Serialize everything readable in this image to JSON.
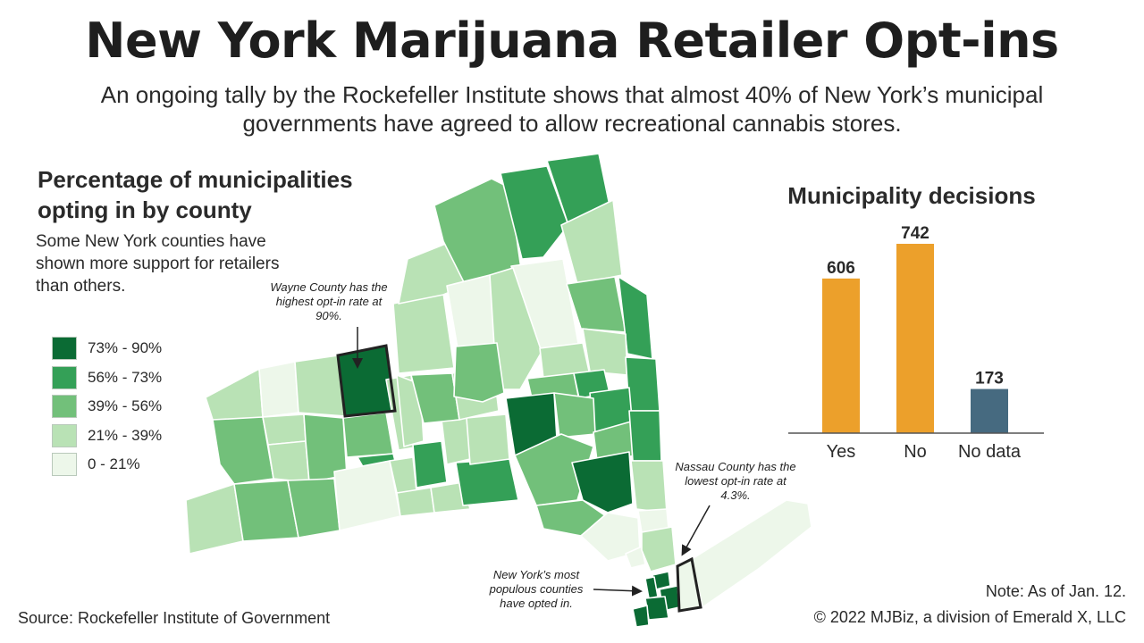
{
  "header": {
    "title": "New York Marijuana Retailer Opt-ins",
    "subtitle": "An ongoing tally by the Rockefeller Institute shows that almost 40% of New York’s municipal governments have agreed to allow recreational cannabis stores."
  },
  "map": {
    "title": "Percentage of municipalities opting in by county",
    "description": "Some New York counties have shown more support for retailers than others.",
    "legend": [
      {
        "label": "73% - 90%",
        "color": "#0b6b34"
      },
      {
        "label": "56% - 73%",
        "color": "#34a057"
      },
      {
        "label": "39% - 56%",
        "color": "#72c07a"
      },
      {
        "label": "21% - 39%",
        "color": "#b9e2b5"
      },
      {
        "label": "0 - 21%",
        "color": "#edf7ea"
      }
    ],
    "annotations": {
      "wayne": "Wayne County has the highest opt-in rate at 90%.",
      "nassau": "Nassau County has the lowest opt-in rate at 4.3%.",
      "nyc": "New York’s most populous counties have opted in."
    }
  },
  "chart_data": {
    "type": "bar",
    "title": "Municipality decisions",
    "categories": [
      "Yes",
      "No",
      "No data"
    ],
    "values": [
      606,
      742,
      173
    ],
    "colors": [
      "#eca02b",
      "#eca02b",
      "#466a80"
    ],
    "xlabel": "",
    "ylabel": "",
    "ylim": [
      0,
      742
    ],
    "grid": false
  },
  "footer": {
    "note": "Note: As of Jan. 12.",
    "copyright": "© 2022 MJBiz, a division of Emerald X, LLC",
    "source": "Source: Rockefeller Institute of Government"
  }
}
